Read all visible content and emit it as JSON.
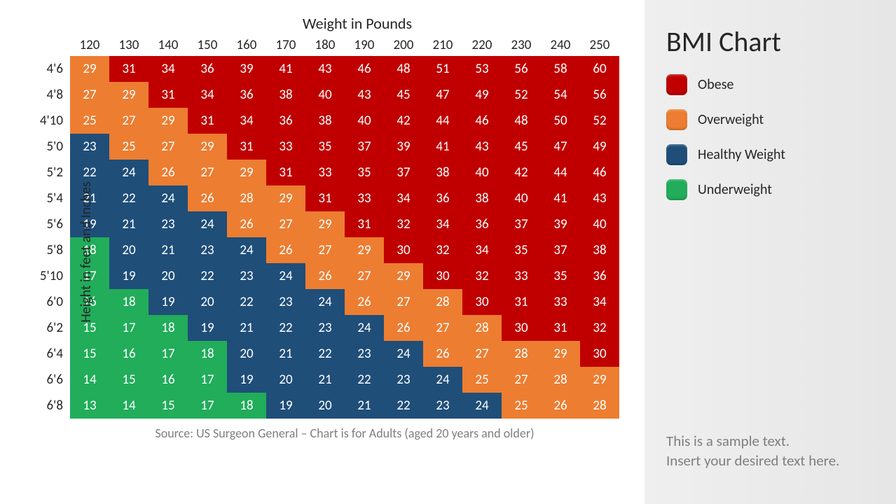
{
  "chart": {
    "x_title": "Weight in Pounds",
    "y_title": "Height in feet and Inches",
    "source": "Source: US Surgeon General – Chart is for Adults (aged 20 years and older)",
    "weights": [
      120,
      130,
      140,
      150,
      160,
      170,
      180,
      190,
      200,
      210,
      220,
      230,
      240,
      250
    ],
    "heights": [
      "4'6",
      "4'8",
      "4'10",
      "5'0",
      "5'2",
      "5'4",
      "5'6",
      "5'8",
      "5'10",
      "6'0",
      "6'2",
      "6'4",
      "6'6",
      "6'8"
    ],
    "grid": [
      [
        29,
        31,
        34,
        36,
        39,
        41,
        43,
        46,
        48,
        51,
        53,
        56,
        58,
        60
      ],
      [
        27,
        29,
        31,
        34,
        36,
        38,
        40,
        43,
        45,
        47,
        49,
        52,
        54,
        56
      ],
      [
        25,
        27,
        29,
        31,
        34,
        36,
        38,
        40,
        42,
        44,
        46,
        48,
        50,
        52
      ],
      [
        23,
        25,
        27,
        29,
        31,
        33,
        35,
        37,
        39,
        41,
        43,
        45,
        47,
        49
      ],
      [
        22,
        24,
        26,
        27,
        29,
        31,
        33,
        35,
        37,
        38,
        40,
        42,
        44,
        46
      ],
      [
        21,
        22,
        24,
        26,
        28,
        29,
        31,
        33,
        34,
        36,
        38,
        40,
        41,
        43
      ],
      [
        19,
        21,
        23,
        24,
        26,
        27,
        29,
        31,
        32,
        34,
        36,
        37,
        39,
        40
      ],
      [
        18,
        20,
        21,
        23,
        24,
        26,
        27,
        29,
        30,
        32,
        34,
        35,
        37,
        38
      ],
      [
        17,
        19,
        20,
        22,
        23,
        24,
        26,
        27,
        29,
        30,
        32,
        33,
        35,
        36
      ],
      [
        16,
        18,
        19,
        20,
        22,
        23,
        24,
        26,
        27,
        28,
        30,
        31,
        33,
        34
      ],
      [
        15,
        17,
        18,
        19,
        21,
        22,
        23,
        24,
        26,
        27,
        28,
        30,
        31,
        32
      ],
      [
        15,
        16,
        17,
        18,
        20,
        21,
        22,
        23,
        24,
        26,
        27,
        28,
        29,
        30
      ],
      [
        14,
        15,
        16,
        17,
        19,
        20,
        21,
        22,
        23,
        24,
        25,
        27,
        28,
        29
      ],
      [
        13,
        14,
        15,
        17,
        18,
        19,
        20,
        21,
        22,
        23,
        24,
        25,
        26,
        28
      ]
    ],
    "thresholds": {
      "under": 18,
      "healthy": 24,
      "over": 29
    },
    "colors": {
      "underweight": "#21ad5a",
      "healthy": "#1f4e79",
      "overweight": "#ed7d31",
      "obese": "#c00000"
    },
    "cell": {
      "width": 56,
      "height": 37,
      "fontsize": 19,
      "text_color": "#ffffff"
    }
  },
  "sidebar": {
    "title": "BMI Chart",
    "legend": [
      {
        "label": "Obese",
        "color": "#c00000"
      },
      {
        "label": "Overweight",
        "color": "#ed7d31"
      },
      {
        "label": "Healthy Weight",
        "color": "#1f4e79"
      },
      {
        "label": "Underweight",
        "color": "#21ad5a"
      }
    ],
    "sample_text_l1": "This is a sample text.",
    "sample_text_l2": "Insert your desired text here."
  }
}
